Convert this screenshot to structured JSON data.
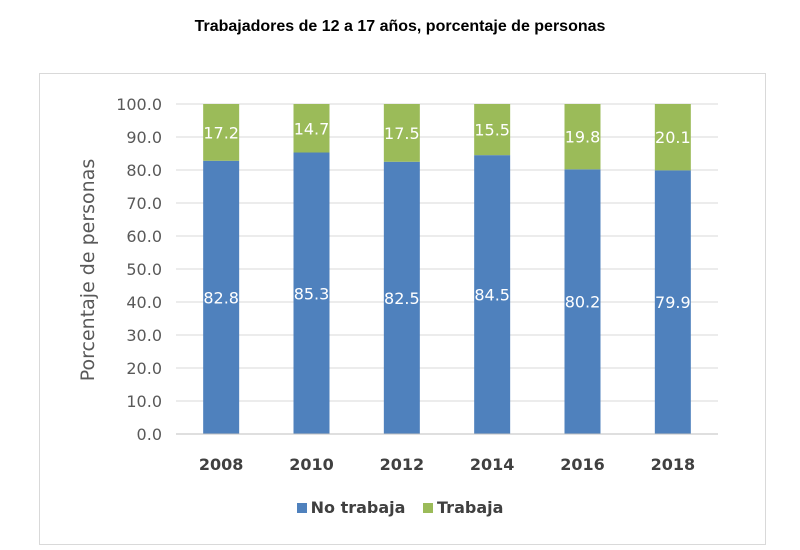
{
  "chart_data": {
    "type": "bar",
    "stacked": true,
    "title": "Trabajadores de 12 a 17 años, porcentaje de personas",
    "ylabel": "Porcentaje de personas",
    "xlabel": "",
    "ylim": [
      0,
      100
    ],
    "yticks": [
      "0.0",
      "10.0",
      "20.0",
      "30.0",
      "40.0",
      "50.0",
      "60.0",
      "70.0",
      "80.0",
      "90.0",
      "100.0"
    ],
    "categories": [
      "2008",
      "2010",
      "2012",
      "2014",
      "2016",
      "2018"
    ],
    "series": [
      {
        "name": "No trabaja",
        "color": "#4f81bd",
        "values": [
          82.8,
          85.3,
          82.5,
          84.5,
          80.2,
          79.9
        ]
      },
      {
        "name": "Trabaja",
        "color": "#9bbb59",
        "values": [
          17.2,
          14.7,
          17.5,
          15.5,
          19.8,
          20.1
        ]
      }
    ],
    "grid": true,
    "legend": "bottom"
  }
}
